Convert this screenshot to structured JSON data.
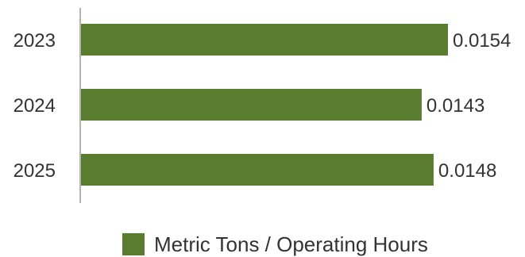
{
  "chart_data": {
    "type": "bar",
    "orientation": "horizontal",
    "categories": [
      "2023",
      "2024",
      "2025"
    ],
    "series": [
      {
        "name": "Metric Tons / Operating Hours",
        "values": [
          0.0154,
          0.0143,
          0.0148
        ],
        "color": "#5a7c2e"
      }
    ],
    "data_labels": [
      "0.0154",
      "0.0143",
      "0.0148"
    ],
    "xlim": [
      0,
      0.0158
    ],
    "grid": false,
    "legend_position": "bottom"
  }
}
